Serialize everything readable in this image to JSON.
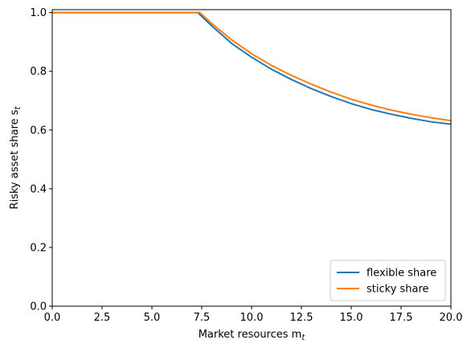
{
  "chart_data": {
    "type": "line",
    "title": "",
    "xlabel": "Market resources m",
    "xlabel_sub": "t",
    "ylabel": "Risky asset share s",
    "ylabel_sub": "t",
    "xlim": [
      0,
      20
    ],
    "ylim": [
      0,
      1.01
    ],
    "xticks": [
      0.0,
      2.5,
      5.0,
      7.5,
      10.0,
      12.5,
      15.0,
      17.5,
      20.0
    ],
    "xtick_labels": [
      "0.0",
      "2.5",
      "5.0",
      "7.5",
      "10.0",
      "12.5",
      "15.0",
      "17.5",
      "20.0"
    ],
    "yticks": [
      0.0,
      0.2,
      0.4,
      0.6,
      0.8,
      1.0
    ],
    "ytick_labels": [
      "0.0",
      "0.2",
      "0.4",
      "0.6",
      "0.8",
      "1.0"
    ],
    "grid": false,
    "legend_position": "lower right",
    "series": [
      {
        "name": "flexible share",
        "color": "#1f77b4",
        "x": [
          0,
          7.3,
          8,
          9,
          10,
          11,
          12,
          13,
          14,
          15,
          16,
          17,
          18,
          19,
          20
        ],
        "y": [
          1.0,
          1.0,
          0.955,
          0.895,
          0.848,
          0.807,
          0.772,
          0.741,
          0.714,
          0.69,
          0.67,
          0.654,
          0.64,
          0.628,
          0.62
        ]
      },
      {
        "name": "sticky share",
        "color": "#ff7f0e",
        "x": [
          0,
          7.4,
          8,
          9,
          10,
          11,
          12,
          13,
          14,
          15,
          16,
          17,
          18,
          19,
          20
        ],
        "y": [
          1.0,
          1.0,
          0.963,
          0.907,
          0.86,
          0.82,
          0.786,
          0.756,
          0.729,
          0.705,
          0.685,
          0.668,
          0.654,
          0.642,
          0.632
        ]
      }
    ]
  }
}
